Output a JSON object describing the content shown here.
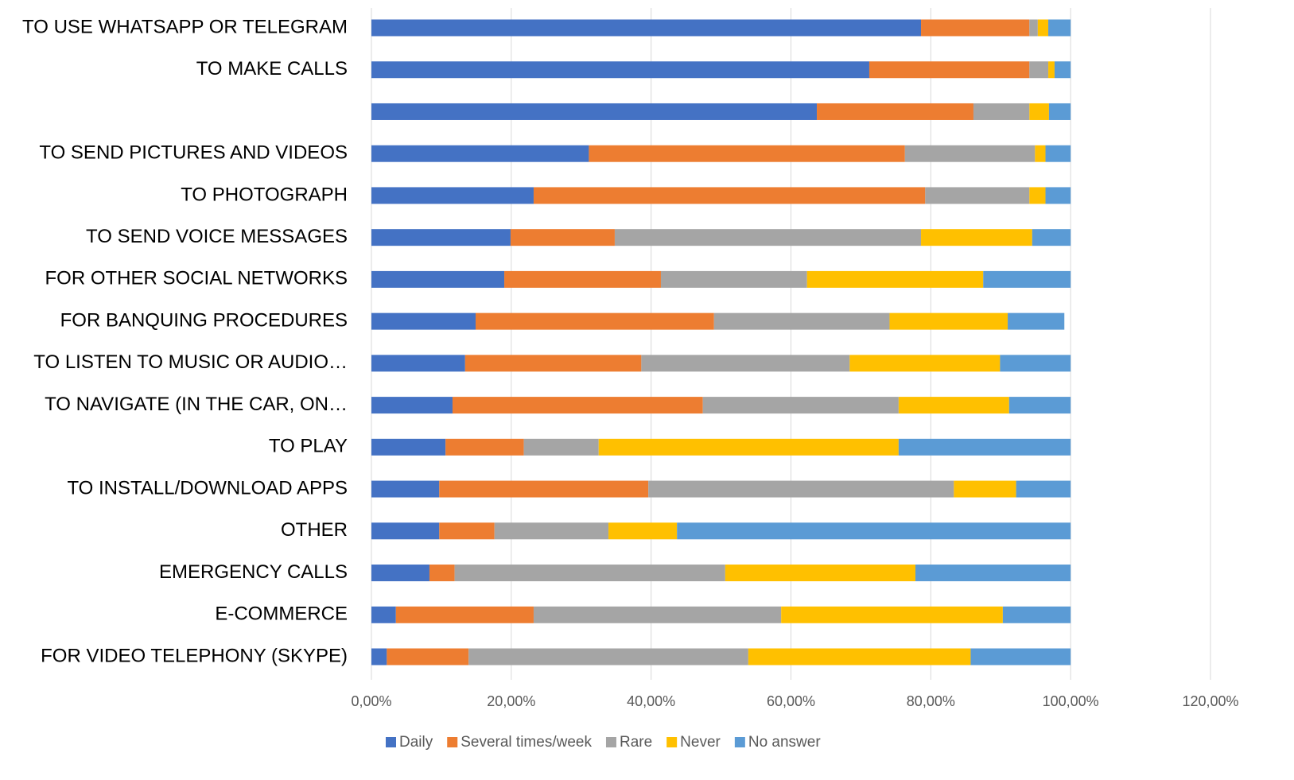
{
  "chart_data": {
    "type": "stacked_bar_horizontal",
    "categories": [
      "TO USE WHATSAPP OR TELEGRAM",
      "TO MAKE CALLS",
      null,
      "TO SEND PICTURES AND VIDEOS",
      "TO PHOTOGRAPH",
      "TO SEND VOICE MESSAGES",
      "FOR OTHER SOCIAL NETWORKS",
      "FOR BANQUING PROCEDURES",
      "TO LISTEN TO MUSIC OR AUDIO…",
      "TO NAVIGATE (IN THE CAR, ON…",
      "TO PLAY",
      "TO INSTALL/DOWNLOAD APPS",
      "OTHER",
      "EMERGENCY CALLS",
      "E-COMMERCE",
      "FOR VIDEO TELEPHONY (SKYPE)"
    ],
    "series": [
      {
        "name": "Daily",
        "color": "#4472c4",
        "values": [
          78.6,
          71.2,
          63.7,
          31.1,
          23.2,
          19.9,
          19.0,
          14.9,
          13.4,
          11.6,
          10.6,
          9.7,
          9.7,
          8.3,
          3.5,
          2.2
        ]
      },
      {
        "name": "Several times/week",
        "color": "#ed7d31",
        "values": [
          15.5,
          22.9,
          22.4,
          45.2,
          56.0,
          14.9,
          22.4,
          34.1,
          25.2,
          35.8,
          11.2,
          29.9,
          7.9,
          3.6,
          19.7,
          11.7
        ]
      },
      {
        "name": "Rare",
        "color": "#a5a5a5",
        "values": [
          1.2,
          2.7,
          8.0,
          18.6,
          14.9,
          43.8,
          20.9,
          25.1,
          29.8,
          28.0,
          10.7,
          43.7,
          16.3,
          38.7,
          35.4,
          40.0
        ]
      },
      {
        "name": "Never",
        "color": "#ffc000",
        "values": [
          1.5,
          0.9,
          2.8,
          1.5,
          2.3,
          15.9,
          25.2,
          16.9,
          21.5,
          15.8,
          42.9,
          8.9,
          9.8,
          27.2,
          31.7,
          31.8
        ]
      },
      {
        "name": "No answer",
        "color": "#5b9bd5",
        "values": [
          3.2,
          2.3,
          3.1,
          3.6,
          3.6,
          5.5,
          12.5,
          8.1,
          10.1,
          8.8,
          24.6,
          7.8,
          56.3,
          22.2,
          9.7,
          14.3
        ]
      }
    ],
    "xlim": [
      0,
      120
    ],
    "xticks": [
      {
        "value": 0,
        "label": "0,00%"
      },
      {
        "value": 20,
        "label": "20,00%"
      },
      {
        "value": 40,
        "label": "40,00%"
      },
      {
        "value": 60,
        "label": "60,00%"
      },
      {
        "value": 80,
        "label": "80,00%"
      },
      {
        "value": 100,
        "label": "100,00%"
      },
      {
        "value": 120,
        "label": "120,00%"
      }
    ],
    "grid": true,
    "legend": "bottom"
  }
}
